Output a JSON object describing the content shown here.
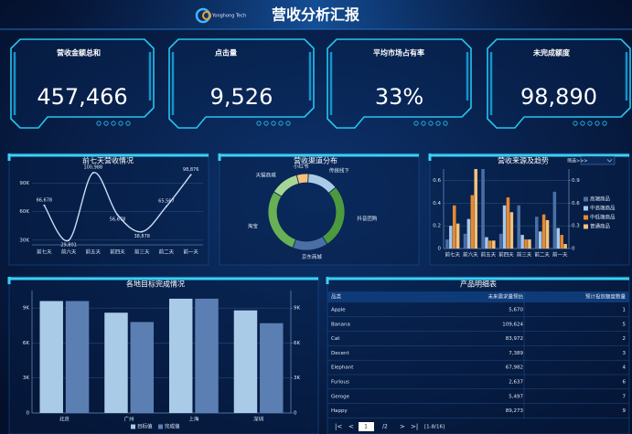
{
  "header": {
    "title": "营收分析汇报",
    "logo": "Yonghong Tech"
  },
  "kpis": [
    {
      "label": "营收金额总和",
      "value": "457,466"
    },
    {
      "label": "点击量",
      "value": "9,526"
    },
    {
      "label": "平均市场占有率",
      "value": "33%"
    },
    {
      "label": "未完成额度",
      "value": "98,890"
    }
  ],
  "controls": {
    "filter": "筛选>>>"
  },
  "chart_data": [
    {
      "type": "line",
      "title": "前七天营收情况",
      "color": "#c9dcf5",
      "categories": [
        "前七天",
        "前六天",
        "前五天",
        "前四天",
        "前三天",
        "前二天",
        "前一天"
      ],
      "values": [
        66678,
        29801,
        100988,
        56678,
        38878,
        65567,
        98876
      ],
      "value_labels": [
        "66,678",
        "29,801",
        "100,988",
        "56,678",
        "38,878",
        "65,567",
        "98,876"
      ],
      "ylim": [
        25000,
        105000
      ],
      "yticks": [
        {
          "value": 30000,
          "label": "30K"
        },
        {
          "value": 60000,
          "label": "60K"
        },
        {
          "value": 90000,
          "label": "90K"
        }
      ],
      "grid": true
    },
    {
      "type": "pie",
      "title": "营收渠道分布",
      "categories": [
        "小红书",
        "传统线下",
        "抖音团购",
        "京东商城",
        "淘宝",
        "天猫商城"
      ],
      "values": [
        5,
        13,
        27,
        15,
        28,
        12
      ],
      "colors": [
        "#f5c27a",
        "#a9cbe8",
        "#4b9a3e",
        "#4a6fa5",
        "#67b055",
        "#a6d695"
      ]
    },
    {
      "type": "bar",
      "title": "营收来源及趋势",
      "categories": [
        "前七天",
        "前六天",
        "前五天",
        "前四天",
        "前三天",
        "前二天",
        "前一天"
      ],
      "series": [
        {
          "name": "高端商品",
          "color": "#4a6fa5",
          "values": [
            0.08,
            0.13,
            0.7,
            0.13,
            0.38,
            0.28,
            0.5
          ]
        },
        {
          "name": "中高端商品",
          "color": "#a6c8ea",
          "values": [
            0.2,
            0.26,
            0.1,
            0.38,
            0.12,
            0.15,
            0.18
          ]
        },
        {
          "name": "中低端商品",
          "color": "#e8892f",
          "values": [
            0.38,
            0.47,
            0.07,
            0.45,
            0.08,
            0.3,
            0.12
          ]
        },
        {
          "name": "普通商品",
          "color": "#f5c27a",
          "values": [
            0.22,
            0.7,
            0.07,
            0.32,
            0.08,
            0.25,
            0.04
          ]
        }
      ],
      "ylim": [
        0,
        0.7
      ],
      "yticks": [
        0,
        0.2,
        0.4,
        0.6
      ],
      "y2lim": [
        0,
        1.05
      ],
      "y2ticks": [
        0,
        0.3,
        0.6,
        0.9
      ],
      "grid": true
    },
    {
      "type": "bar",
      "title": "各地目标完成情况",
      "categories": [
        "北京",
        "广州",
        "上海",
        "深圳"
      ],
      "series": [
        {
          "name": "目标值",
          "color": "#a9cbe8",
          "values": [
            9600,
            8600,
            9800,
            8800
          ]
        },
        {
          "name": "完成值",
          "color": "#5b7fb3",
          "values": [
            9600,
            7800,
            9800,
            7700
          ]
        }
      ],
      "ylim": [
        0,
        10500
      ],
      "yticks": [
        0,
        {
          "value": 3000,
          "label": "3K"
        },
        {
          "value": 6000,
          "label": "6K"
        },
        {
          "value": 9000,
          "label": "9K"
        }
      ],
      "y2lim": [
        0,
        10500
      ],
      "y2ticks": [
        0,
        {
          "value": 3000,
          "label": "3K"
        },
        {
          "value": 6000,
          "label": "6K"
        },
        {
          "value": 9000,
          "label": "9K"
        }
      ],
      "grid": true
    }
  ],
  "table": {
    "title": "产品明细表",
    "columns": [
      "品类",
      "未来需求量预估",
      "预计投放额度数量"
    ],
    "rows": [
      [
        "Apple",
        "5,670",
        "1"
      ],
      [
        "Banana",
        "109,624",
        "5"
      ],
      [
        "Cat",
        "83,972",
        "2"
      ],
      [
        "Decent",
        "7,389",
        "3"
      ],
      [
        "Elephant",
        "67,982",
        "4"
      ],
      [
        "Furious",
        "2,637",
        "6"
      ],
      [
        "Geroge",
        "5,497",
        "7"
      ],
      [
        "Happy",
        "89,273",
        "9"
      ]
    ],
    "pagination": {
      "page": "1",
      "pages": "/2",
      "range": "[1-8/16]"
    }
  }
}
